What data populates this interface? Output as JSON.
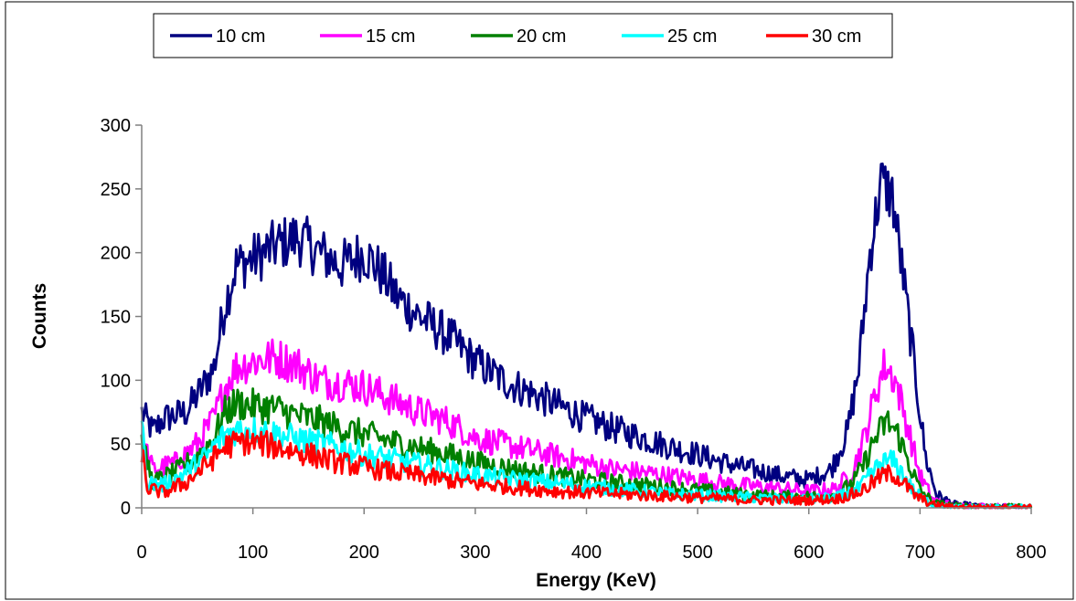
{
  "chart_data": {
    "type": "line",
    "title": "",
    "xlabel": "Energy (KeV)",
    "ylabel": "Counts",
    "xlim": [
      0,
      800
    ],
    "ylim": [
      0,
      300
    ],
    "x_ticks": [
      "0",
      "100",
      "200",
      "300",
      "400",
      "500",
      "600",
      "700",
      "800"
    ],
    "y_ticks": [
      "0",
      "50",
      "100",
      "150",
      "200",
      "250",
      "300"
    ],
    "grid": false,
    "legend_position": "top",
    "series": [
      {
        "name": "10 cm",
        "color": "#000080",
        "points": [
          [
            0,
            75
          ],
          [
            10,
            60
          ],
          [
            20,
            70
          ],
          [
            40,
            75
          ],
          [
            55,
            95
          ],
          [
            65,
            110
          ],
          [
            75,
            160
          ],
          [
            85,
            190
          ],
          [
            100,
            195
          ],
          [
            120,
            205
          ],
          [
            140,
            212
          ],
          [
            160,
            200
          ],
          [
            180,
            190
          ],
          [
            200,
            200
          ],
          [
            215,
            185
          ],
          [
            230,
            165
          ],
          [
            250,
            150
          ],
          [
            275,
            135
          ],
          [
            300,
            115
          ],
          [
            325,
            100
          ],
          [
            350,
            90
          ],
          [
            375,
            80
          ],
          [
            400,
            70
          ],
          [
            425,
            62
          ],
          [
            450,
            55
          ],
          [
            475,
            48
          ],
          [
            500,
            42
          ],
          [
            525,
            35
          ],
          [
            550,
            30
          ],
          [
            575,
            25
          ],
          [
            600,
            22
          ],
          [
            620,
            30
          ],
          [
            635,
            60
          ],
          [
            645,
            110
          ],
          [
            655,
            200
          ],
          [
            665,
            255
          ],
          [
            675,
            245
          ],
          [
            685,
            180
          ],
          [
            695,
            110
          ],
          [
            705,
            40
          ],
          [
            715,
            10
          ],
          [
            730,
            3
          ],
          [
            760,
            1
          ],
          [
            800,
            1
          ]
        ]
      },
      {
        "name": "15 cm",
        "color": "#FF00FF",
        "points": [
          [
            0,
            55
          ],
          [
            10,
            30
          ],
          [
            30,
            35
          ],
          [
            50,
            50
          ],
          [
            65,
            70
          ],
          [
            75,
            95
          ],
          [
            85,
            110
          ],
          [
            100,
            115
          ],
          [
            120,
            118
          ],
          [
            140,
            112
          ],
          [
            160,
            100
          ],
          [
            180,
            98
          ],
          [
            200,
            95
          ],
          [
            225,
            85
          ],
          [
            250,
            75
          ],
          [
            275,
            68
          ],
          [
            300,
            55
          ],
          [
            325,
            50
          ],
          [
            350,
            45
          ],
          [
            375,
            40
          ],
          [
            400,
            35
          ],
          [
            425,
            30
          ],
          [
            450,
            28
          ],
          [
            475,
            25
          ],
          [
            500,
            22
          ],
          [
            525,
            19
          ],
          [
            550,
            17
          ],
          [
            575,
            15
          ],
          [
            600,
            13
          ],
          [
            625,
            15
          ],
          [
            640,
            30
          ],
          [
            650,
            55
          ],
          [
            660,
            90
          ],
          [
            668,
            112
          ],
          [
            678,
            100
          ],
          [
            690,
            60
          ],
          [
            700,
            25
          ],
          [
            712,
            6
          ],
          [
            730,
            2
          ],
          [
            800,
            1
          ]
        ]
      },
      {
        "name": "20 cm",
        "color": "#008000",
        "points": [
          [
            0,
            50
          ],
          [
            10,
            20
          ],
          [
            30,
            28
          ],
          [
            50,
            40
          ],
          [
            65,
            55
          ],
          [
            75,
            75
          ],
          [
            85,
            82
          ],
          [
            100,
            80
          ],
          [
            120,
            78
          ],
          [
            140,
            72
          ],
          [
            160,
            68
          ],
          [
            180,
            62
          ],
          [
            200,
            58
          ],
          [
            225,
            52
          ],
          [
            250,
            47
          ],
          [
            275,
            42
          ],
          [
            300,
            36
          ],
          [
            325,
            32
          ],
          [
            350,
            28
          ],
          [
            375,
            25
          ],
          [
            400,
            22
          ],
          [
            425,
            20
          ],
          [
            450,
            18
          ],
          [
            475,
            16
          ],
          [
            500,
            14
          ],
          [
            525,
            12
          ],
          [
            550,
            10
          ],
          [
            575,
            9
          ],
          [
            600,
            9
          ],
          [
            625,
            10
          ],
          [
            640,
            20
          ],
          [
            650,
            35
          ],
          [
            660,
            55
          ],
          [
            670,
            68
          ],
          [
            680,
            58
          ],
          [
            690,
            35
          ],
          [
            700,
            14
          ],
          [
            712,
            4
          ],
          [
            730,
            2
          ],
          [
            800,
            1
          ]
        ]
      },
      {
        "name": "25 cm",
        "color": "#00FFFF",
        "points": [
          [
            0,
            65
          ],
          [
            5,
            20
          ],
          [
            20,
            18
          ],
          [
            40,
            28
          ],
          [
            60,
            42
          ],
          [
            75,
            58
          ],
          [
            90,
            62
          ],
          [
            110,
            60
          ],
          [
            130,
            56
          ],
          [
            150,
            52
          ],
          [
            175,
            48
          ],
          [
            200,
            42
          ],
          [
            225,
            38
          ],
          [
            250,
            34
          ],
          [
            275,
            30
          ],
          [
            300,
            26
          ],
          [
            325,
            23
          ],
          [
            350,
            21
          ],
          [
            375,
            19
          ],
          [
            400,
            17
          ],
          [
            425,
            15
          ],
          [
            450,
            13
          ],
          [
            475,
            11
          ],
          [
            500,
            10
          ],
          [
            525,
            9
          ],
          [
            550,
            8
          ],
          [
            575,
            7
          ],
          [
            600,
            7
          ],
          [
            625,
            8
          ],
          [
            645,
            15
          ],
          [
            655,
            25
          ],
          [
            665,
            35
          ],
          [
            675,
            37
          ],
          [
            685,
            26
          ],
          [
            695,
            12
          ],
          [
            710,
            3
          ],
          [
            730,
            1
          ],
          [
            800,
            1
          ]
        ]
      },
      {
        "name": "30 cm",
        "color": "#FF0000",
        "points": [
          [
            0,
            45
          ],
          [
            5,
            15
          ],
          [
            20,
            12
          ],
          [
            40,
            20
          ],
          [
            60,
            35
          ],
          [
            75,
            48
          ],
          [
            90,
            52
          ],
          [
            110,
            50
          ],
          [
            130,
            46
          ],
          [
            150,
            42
          ],
          [
            175,
            36
          ],
          [
            200,
            32
          ],
          [
            225,
            28
          ],
          [
            250,
            25
          ],
          [
            275,
            22
          ],
          [
            300,
            19
          ],
          [
            325,
            17
          ],
          [
            350,
            15
          ],
          [
            375,
            13
          ],
          [
            400,
            12
          ],
          [
            425,
            11
          ],
          [
            450,
            10
          ],
          [
            475,
            9
          ],
          [
            500,
            8
          ],
          [
            525,
            7
          ],
          [
            550,
            6
          ],
          [
            575,
            6
          ],
          [
            600,
            6
          ],
          [
            625,
            7
          ],
          [
            645,
            12
          ],
          [
            655,
            18
          ],
          [
            665,
            25
          ],
          [
            675,
            27
          ],
          [
            685,
            20
          ],
          [
            695,
            10
          ],
          [
            710,
            3
          ],
          [
            730,
            1
          ],
          [
            800,
            1
          ]
        ]
      }
    ]
  }
}
